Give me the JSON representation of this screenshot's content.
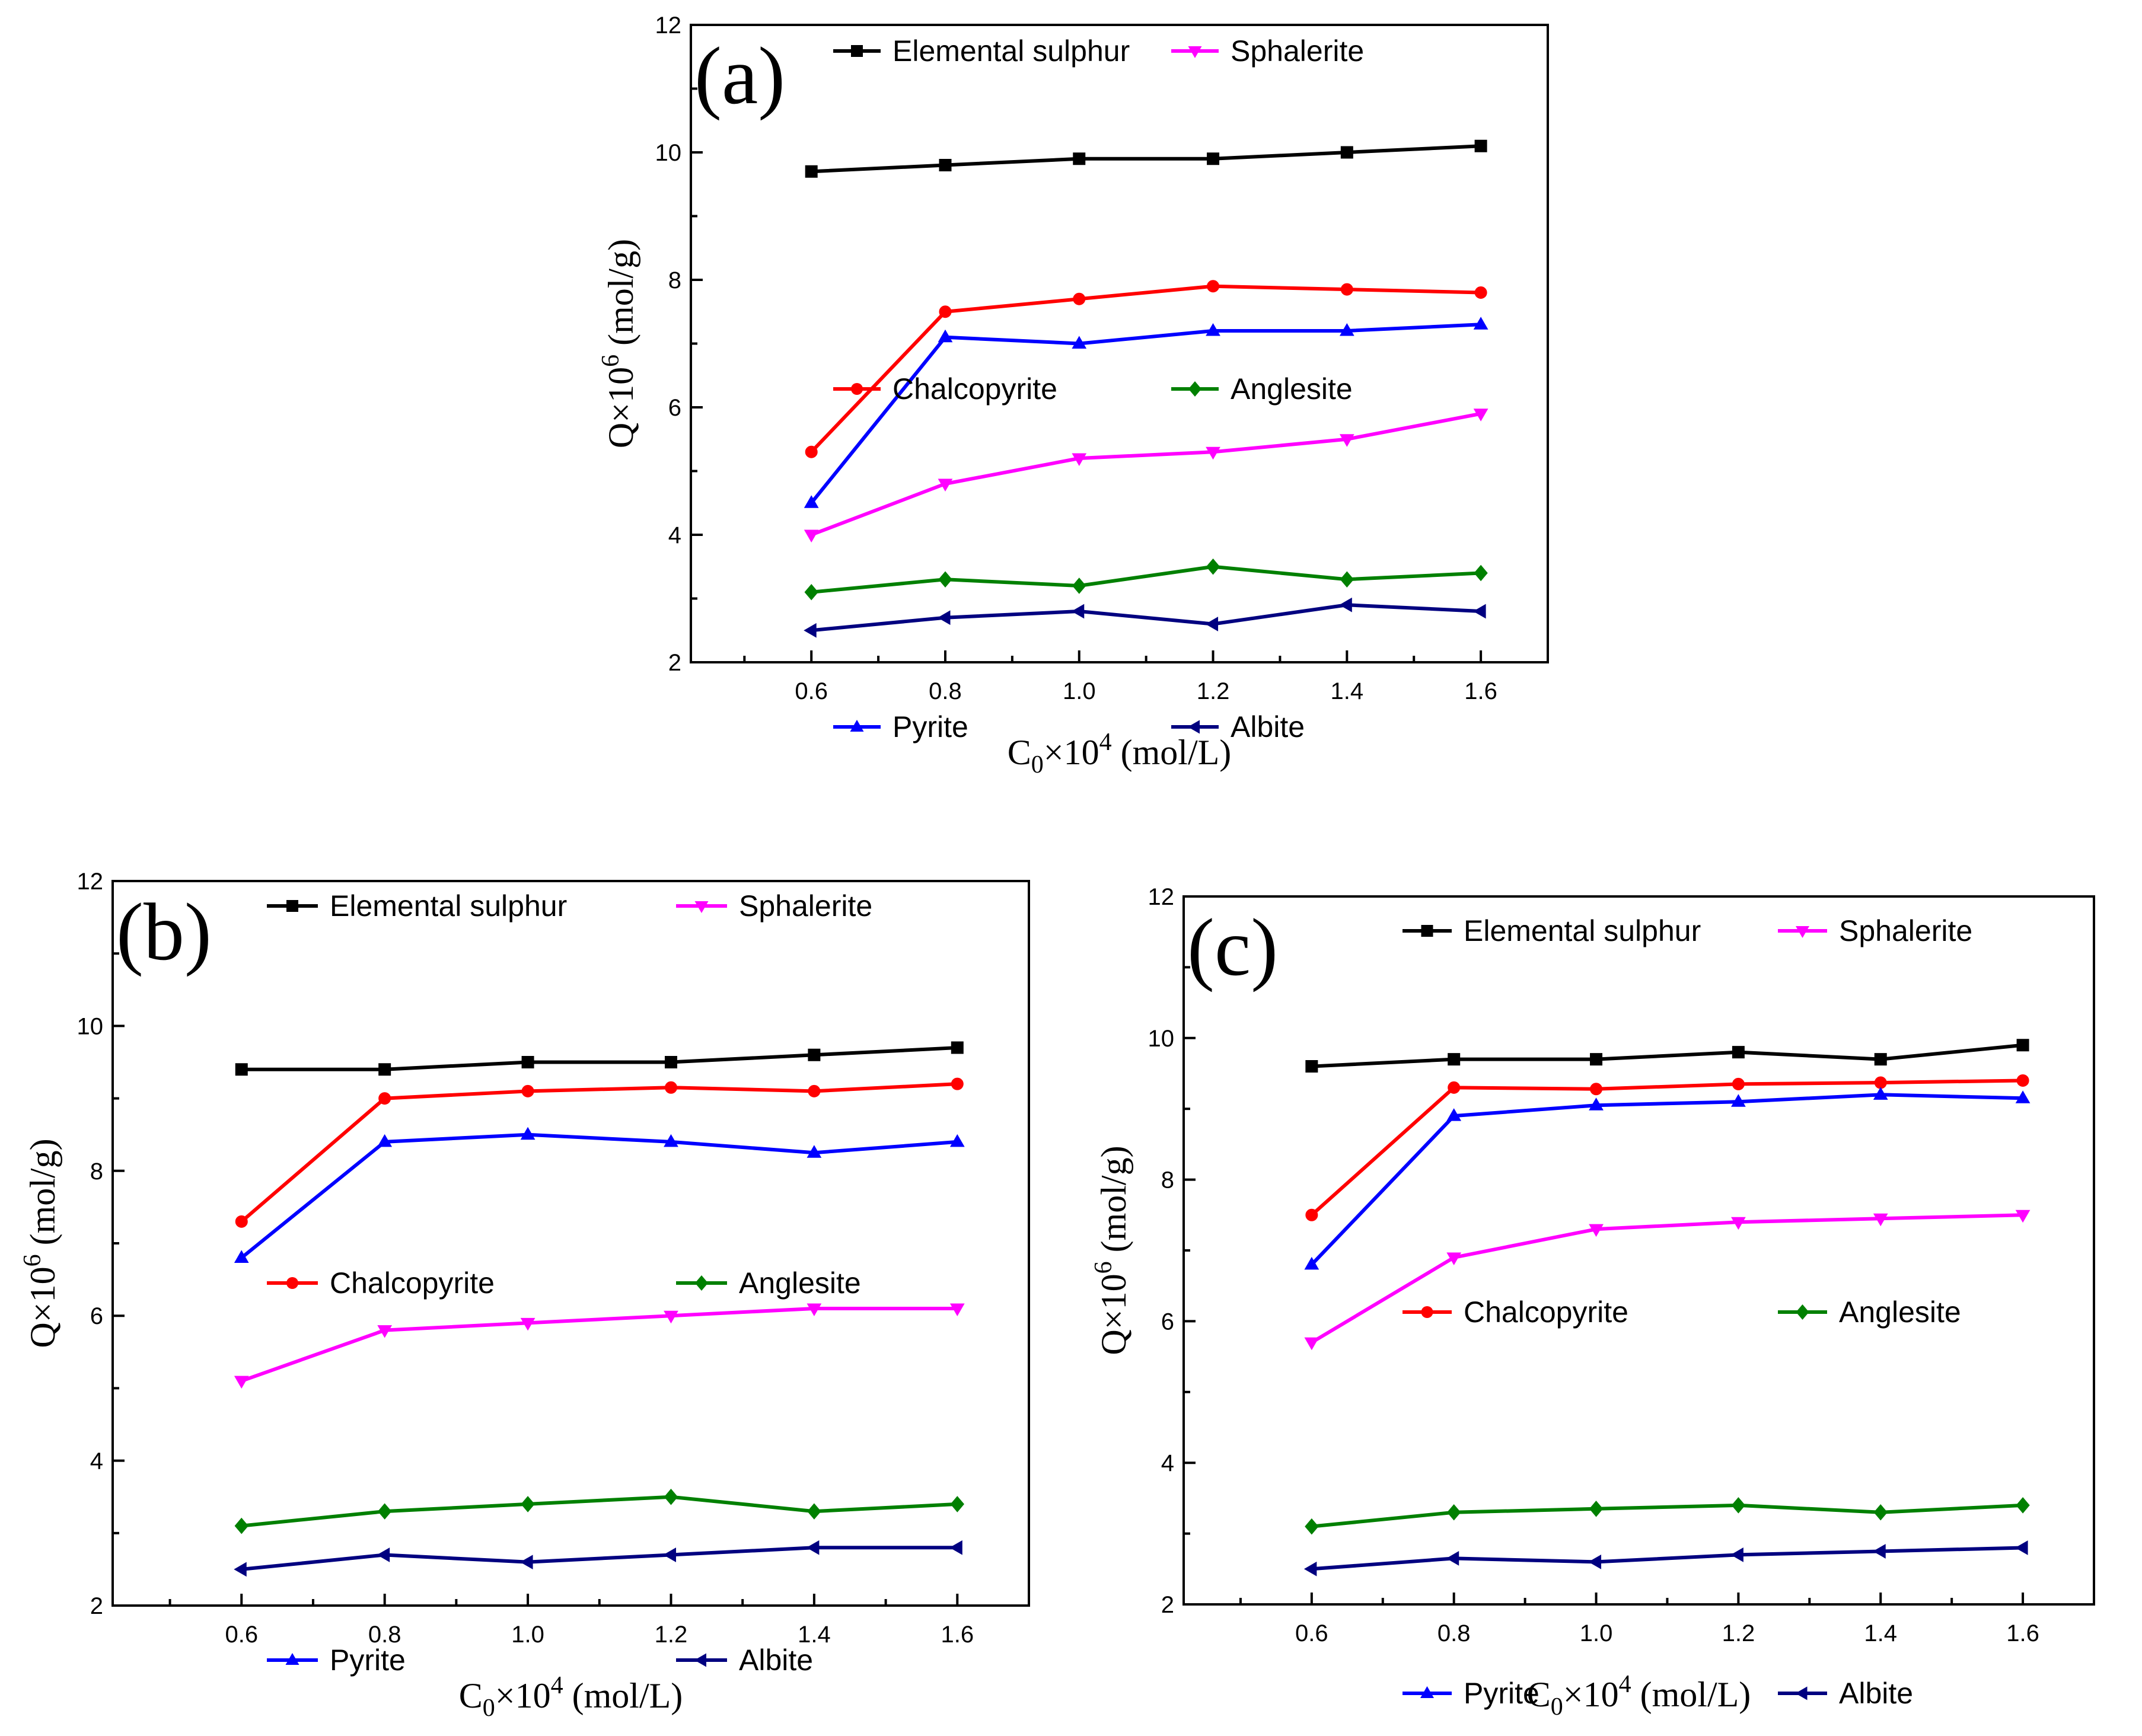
{
  "figure": {
    "series_names": [
      "Elemental sulphur",
      "Chalcopyrite",
      "Pyrite",
      "Sphalerite",
      "Anglesite",
      "Albite"
    ],
    "series_colors": [
      "#000000",
      "#ff0000",
      "#0000ff",
      "#ff00ff",
      "#008000",
      "#000080"
    ],
    "series_markers": [
      "square",
      "circle",
      "triangle-up",
      "triangle-down",
      "diamond",
      "triangle-left"
    ]
  },
  "chart_data": [
    {
      "type": "line",
      "panel_label": "(a)",
      "title": "",
      "xlabel": "C0×10^4 (mol/L)",
      "ylabel": "Q×10^6 (mol/g)",
      "xlabel_parts": {
        "base": "C",
        "sub": "0",
        "mid": "×10",
        "sup": "4",
        "end": " (mol/L)"
      },
      "ylabel_parts": {
        "base": "Q×10",
        "sup": "6",
        "end": " (mol/g)"
      },
      "x": [
        0.6,
        0.8,
        1.0,
        1.2,
        1.4,
        1.6
      ],
      "x_ticks": [
        "0.6",
        "0.8",
        "1.0",
        "1.2",
        "1.4",
        "1.6"
      ],
      "y_ticks": [
        "2",
        "4",
        "6",
        "8",
        "10",
        "12"
      ],
      "xlim": [
        0.42,
        1.7
      ],
      "ylim": [
        2,
        12
      ],
      "legend_position": "top",
      "series": [
        {
          "name": "Elemental sulphur",
          "values": [
            9.7,
            9.8,
            9.9,
            9.9,
            10.0,
            10.1
          ]
        },
        {
          "name": "Chalcopyrite",
          "values": [
            5.3,
            7.5,
            7.7,
            7.9,
            7.85,
            7.8
          ]
        },
        {
          "name": "Pyrite",
          "values": [
            4.5,
            7.1,
            7.0,
            7.2,
            7.2,
            7.3
          ]
        },
        {
          "name": "Sphalerite",
          "values": [
            4.0,
            4.8,
            5.2,
            5.3,
            5.5,
            5.9
          ]
        },
        {
          "name": "Anglesite",
          "values": [
            3.1,
            3.3,
            3.2,
            3.5,
            3.3,
            3.4
          ]
        },
        {
          "name": "Albite",
          "values": [
            2.5,
            2.7,
            2.8,
            2.6,
            2.9,
            2.8
          ]
        }
      ]
    },
    {
      "type": "line",
      "panel_label": "(b)",
      "title": "",
      "xlabel": "C0×10^4 (mol/L)",
      "ylabel": "Q×10^6 (mol/g)",
      "xlabel_parts": {
        "base": "C",
        "sub": "0",
        "mid": "×10",
        "sup": "4",
        "end": " (mol/L)"
      },
      "ylabel_parts": {
        "base": "Q×10",
        "sup": "6",
        "end": " (mol/g)"
      },
      "x": [
        0.6,
        0.8,
        1.0,
        1.2,
        1.4,
        1.6
      ],
      "x_ticks": [
        "0.6",
        "0.8",
        "1.0",
        "1.2",
        "1.4",
        "1.6"
      ],
      "y_ticks": [
        "2",
        "4",
        "6",
        "8",
        "10",
        "12"
      ],
      "xlim": [
        0.42,
        1.7
      ],
      "ylim": [
        2,
        12
      ],
      "legend_position": "top",
      "series": [
        {
          "name": "Elemental sulphur",
          "values": [
            9.4,
            9.4,
            9.5,
            9.5,
            9.6,
            9.7
          ]
        },
        {
          "name": "Chalcopyrite",
          "values": [
            7.3,
            9.0,
            9.1,
            9.15,
            9.1,
            9.2
          ]
        },
        {
          "name": "Pyrite",
          "values": [
            6.8,
            8.4,
            8.5,
            8.4,
            8.25,
            8.4
          ]
        },
        {
          "name": "Sphalerite",
          "values": [
            5.1,
            5.8,
            5.9,
            6.0,
            6.1,
            6.1
          ]
        },
        {
          "name": "Anglesite",
          "values": [
            3.1,
            3.3,
            3.4,
            3.5,
            3.3,
            3.4
          ]
        },
        {
          "name": "Albite",
          "values": [
            2.5,
            2.7,
            2.6,
            2.7,
            2.8,
            2.8
          ]
        }
      ]
    },
    {
      "type": "line",
      "panel_label": "(c)",
      "title": "",
      "xlabel": "C0×10^4 (mol/L)",
      "ylabel": "Q×10^6 (mol/g)",
      "xlabel_parts": {
        "base": "C",
        "sub": "0",
        "mid": "×10",
        "sup": "4",
        "end": " (mol/L)"
      },
      "ylabel_parts": {
        "base": "Q×10",
        "sup": "6",
        "end": " (mol/g)"
      },
      "x": [
        0.6,
        0.8,
        1.0,
        1.2,
        1.4,
        1.6
      ],
      "x_ticks": [
        "0.6",
        "0.8",
        "1.0",
        "1.2",
        "1.4",
        "1.6"
      ],
      "y_ticks": [
        "2",
        "4",
        "6",
        "8",
        "10",
        "12"
      ],
      "xlim": [
        0.42,
        1.7
      ],
      "ylim": [
        2,
        12
      ],
      "legend_position": "top",
      "series": [
        {
          "name": "Elemental sulphur",
          "values": [
            9.6,
            9.7,
            9.7,
            9.8,
            9.7,
            9.9
          ]
        },
        {
          "name": "Chalcopyrite",
          "values": [
            7.5,
            9.3,
            9.28,
            9.35,
            9.37,
            9.4
          ]
        },
        {
          "name": "Pyrite",
          "values": [
            6.8,
            8.9,
            9.05,
            9.1,
            9.2,
            9.15
          ]
        },
        {
          "name": "Sphalerite",
          "values": [
            5.7,
            6.9,
            7.3,
            7.4,
            7.45,
            7.5
          ]
        },
        {
          "name": "Anglesite",
          "values": [
            3.1,
            3.3,
            3.35,
            3.4,
            3.3,
            3.4
          ]
        },
        {
          "name": "Albite",
          "values": [
            2.5,
            2.65,
            2.6,
            2.7,
            2.75,
            2.8
          ]
        }
      ]
    }
  ]
}
